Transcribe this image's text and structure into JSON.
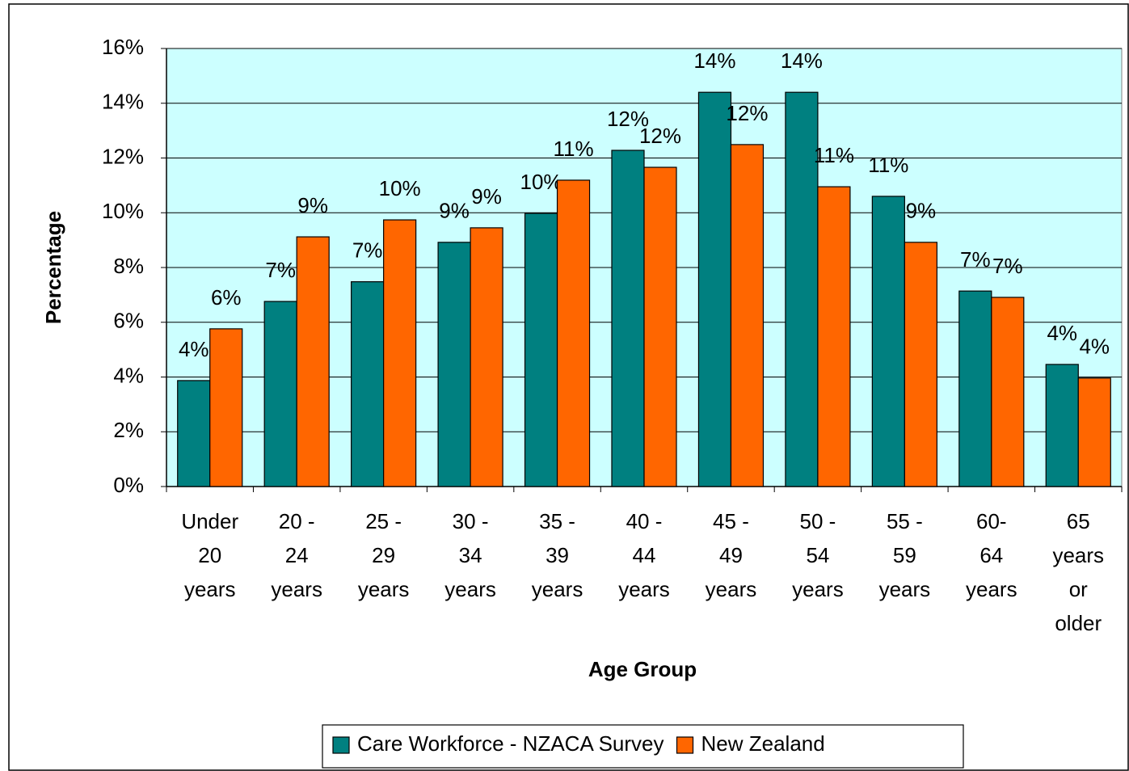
{
  "chart_data": {
    "type": "bar",
    "y_label": "Percentage",
    "x_label": "Age Group",
    "categories": [
      [
        "Under",
        "20",
        "years"
      ],
      [
        "20 -",
        "24",
        "years"
      ],
      [
        "25 -",
        "29",
        "years"
      ],
      [
        "30 -",
        "34",
        "years"
      ],
      [
        "35 -",
        "39",
        "years"
      ],
      [
        "40 -",
        "44",
        "years"
      ],
      [
        "45 -",
        "49",
        "years"
      ],
      [
        "50 -",
        "54",
        "years"
      ],
      [
        "55 -",
        "59",
        "years"
      ],
      [
        "60-",
        "64",
        "years"
      ],
      [
        "65",
        "years",
        "or",
        "older"
      ]
    ],
    "series": [
      {
        "name": "Care Workforce - NZACA Survey",
        "color": "#008080",
        "values": [
          3.87,
          6.76,
          7.48,
          8.92,
          9.98,
          12.28,
          14.4,
          14.4,
          10.6,
          7.14,
          4.46
        ],
        "value_labels": [
          "4%",
          "7%",
          "7%",
          "9%",
          "10%",
          "12%",
          "14%",
          "14%",
          "11%",
          "7%",
          "4%"
        ]
      },
      {
        "name": "New Zealand",
        "color": "#ff6600",
        "values": [
          5.76,
          9.12,
          9.74,
          9.45,
          11.19,
          11.66,
          12.49,
          10.95,
          8.92,
          6.91,
          3.96
        ],
        "value_labels": [
          "6%",
          "9%",
          "10%",
          "9%",
          "11%",
          "12%",
          "12%",
          "11%",
          "9%",
          "7%",
          "4%"
        ]
      }
    ],
    "ylim": [
      0,
      16
    ],
    "yticks": [
      {
        "value": 0,
        "label": "0%"
      },
      {
        "value": 2,
        "label": "2%"
      },
      {
        "value": 4,
        "label": "4%"
      },
      {
        "value": 6,
        "label": "6%"
      },
      {
        "value": 8,
        "label": "8%"
      },
      {
        "value": 10,
        "label": "10%"
      },
      {
        "value": 12,
        "label": "12%"
      },
      {
        "value": 14,
        "label": "14%"
      },
      {
        "value": 16,
        "label": "16%"
      }
    ],
    "grid": true,
    "legend": "bottom",
    "plot_background": "#ccffff"
  }
}
